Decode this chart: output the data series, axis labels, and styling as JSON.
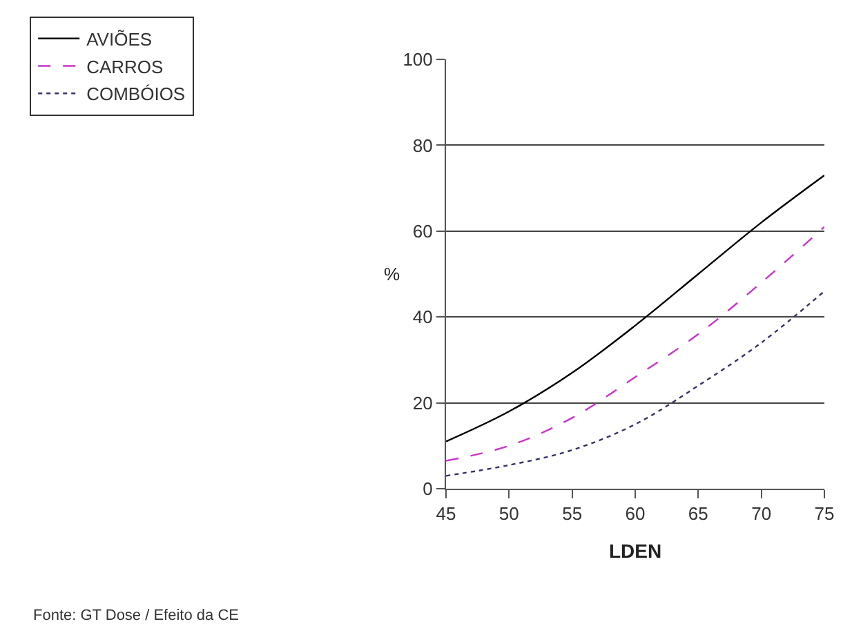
{
  "chart_data": {
    "type": "line",
    "xlabel": "LDEN",
    "ylabel": "%",
    "x": [
      45,
      50,
      55,
      60,
      65,
      70,
      75
    ],
    "series": [
      {
        "name": "AVIÕES",
        "color": "#000000",
        "line_style": "solid",
        "values": [
          11,
          18,
          27,
          38,
          50,
          62,
          73
        ]
      },
      {
        "name": "CARROS",
        "color": "#cc33cc",
        "line_style": "dashed",
        "values": [
          6.5,
          10,
          16.5,
          26,
          36,
          48,
          61
        ]
      },
      {
        "name": "COMBÓIOS",
        "color": "#333366",
        "line_style": "dotted",
        "values": [
          3,
          5.5,
          9,
          15,
          24,
          34,
          46
        ]
      }
    ],
    "xlim": [
      45,
      75
    ],
    "xticks": [
      45,
      50,
      55,
      60,
      65,
      70,
      75
    ],
    "ylim": [
      0,
      100
    ],
    "yticks": [
      0,
      20,
      40,
      60,
      80,
      100
    ],
    "grid": "y",
    "legend": "top left",
    "marker": "none",
    "annotations": [
      "Fonte: GT Dose / Efeito da CE"
    ]
  }
}
